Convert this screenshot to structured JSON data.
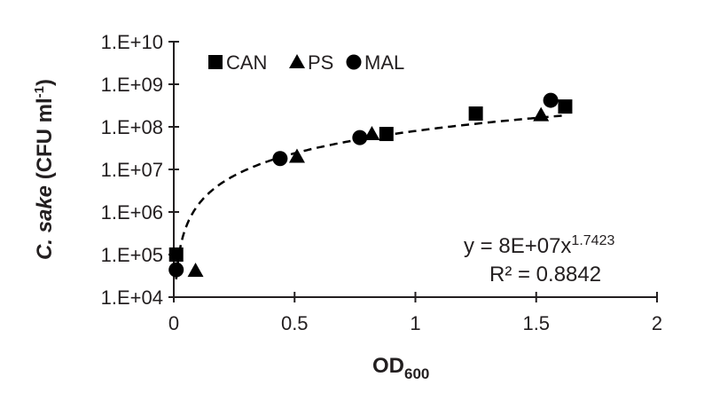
{
  "chart_data": {
    "type": "scatter",
    "xlabel": "OD",
    "xlabel_sub": "600",
    "ylabel_italic": "C. sake",
    "ylabel_rest": " (CFU ml",
    "ylabel_sup": "-1",
    "ylabel_end": ")",
    "xlim": [
      0,
      2
    ],
    "ylim": [
      10000,
      10000000000
    ],
    "yscale": "log",
    "x_ticks": [
      0,
      0.5,
      1,
      1.5,
      2
    ],
    "x_tick_labels": [
      "0",
      "0.5",
      "1",
      "1.5",
      "2"
    ],
    "y_ticks": [
      10000,
      100000,
      1000000,
      10000000,
      100000000,
      1000000000,
      10000000000
    ],
    "y_tick_labels": [
      "1.E+04",
      "1.E+05",
      "1.E+06",
      "1.E+07",
      "1.E+08",
      "1.E+09",
      "1.E+10"
    ],
    "legend_placement": "top-left",
    "series": [
      {
        "name": "CAN",
        "marker": "square",
        "x": [
          0.01,
          0.88,
          1.25,
          1.62
        ],
        "y": [
          100000,
          68000000,
          205000000,
          300000000
        ]
      },
      {
        "name": "PS",
        "marker": "triangle",
        "x": [
          0.09,
          0.51,
          0.82,
          1.52
        ],
        "y": [
          42000,
          20000000,
          68000000,
          190000000
        ]
      },
      {
        "name": "MAL",
        "marker": "circle",
        "x": [
          0.01,
          0.44,
          0.77,
          1.56
        ],
        "y": [
          44000,
          18000000,
          56000000,
          420000000
        ]
      }
    ],
    "trendline": {
      "type": "power",
      "a": 80000000,
      "b": 1.7423,
      "x_range": [
        0.01,
        1.62
      ]
    },
    "equation_text": "y = 8E+07x",
    "equation_exp": "1.7423",
    "r2_text": "R² = 0.8842"
  }
}
